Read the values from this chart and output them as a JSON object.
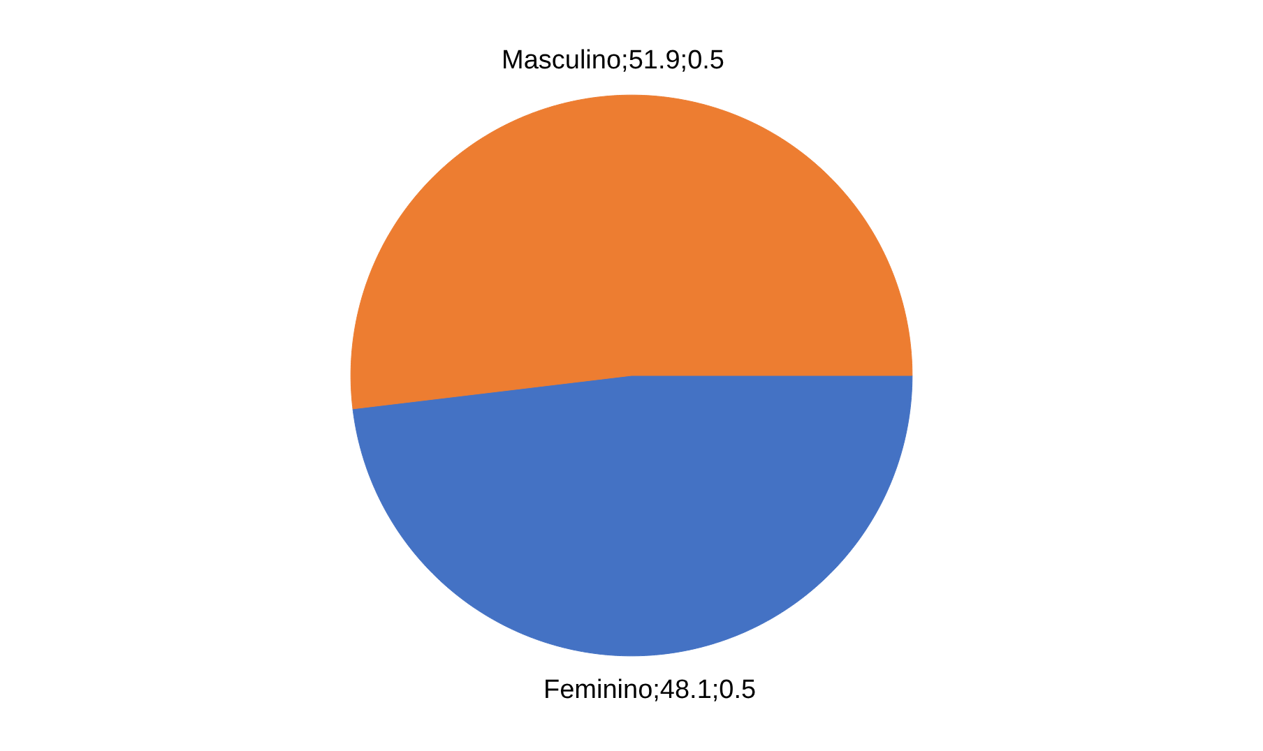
{
  "chart_data": {
    "type": "pie",
    "categories": [
      "Feminino;48.1;0.5",
      "Masculino;51.9;0.5"
    ],
    "values": [
      48.1,
      51.9
    ],
    "colors": [
      "#4472c4",
      "#ed7d31"
    ],
    "legend": false
  }
}
